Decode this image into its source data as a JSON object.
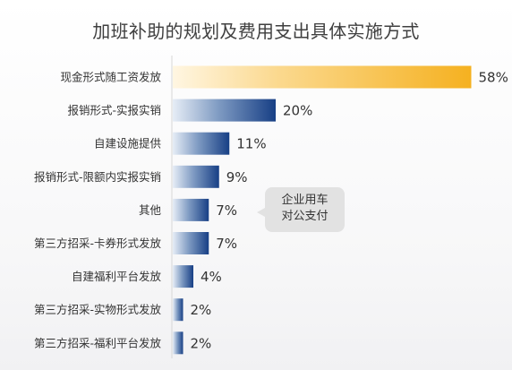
{
  "chart_data": {
    "type": "bar",
    "orientation": "horizontal",
    "title": "加班补助的规划及费用支出具体实施方式",
    "categories": [
      "现金形式随工资发放",
      "报销形式-实报实销",
      "自建设施提供",
      "报销形式-限额内实报实销",
      "其他",
      "第三方招采-卡券形式发放",
      "自建福利平台发放",
      "第三方招采-实物形式发放",
      "第三方招采-福利平台发放"
    ],
    "values": [
      58,
      20,
      11,
      9,
      7,
      7,
      4,
      2,
      2
    ],
    "value_labels": [
      "58%",
      "20%",
      "11%",
      "9%",
      "7%",
      "7%",
      "4%",
      "2%",
      "2%"
    ],
    "unit": "%",
    "grid": false,
    "highlight_color": "#f5b120",
    "bar_color": "#1e4a8c",
    "annotation": {
      "lines": [
        "企业用车",
        "对公支付"
      ],
      "target_category": "其他"
    }
  }
}
